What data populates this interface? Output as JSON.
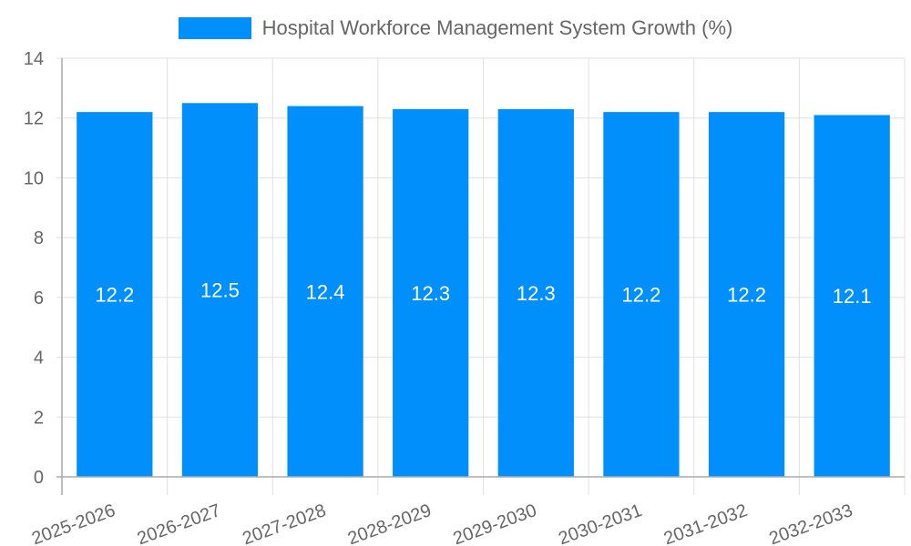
{
  "chart_data": {
    "type": "bar",
    "title": "",
    "legend": [
      "Hospital Workforce Management System Growth (%)"
    ],
    "legend_position": "top",
    "categories": [
      "2025-2026",
      "2026-2027",
      "2027-2028",
      "2028-2029",
      "2029-2030",
      "2030-2031",
      "2031-2032",
      "2032-2033"
    ],
    "series": [
      {
        "name": "Hospital Workforce Management System Growth (%)",
        "values": [
          12.2,
          12.5,
          12.4,
          12.3,
          12.3,
          12.2,
          12.2,
          12.1
        ],
        "color": "#008FFB"
      }
    ],
    "xlabel": "",
    "ylabel": "",
    "ylim": [
      0,
      14
    ],
    "yticks": [
      0,
      2,
      4,
      6,
      8,
      10,
      12,
      14
    ],
    "grid": true,
    "data_labels": true
  },
  "legend": {
    "label": "Hospital Workforce Management System Growth (%)",
    "color": "#008FFB"
  }
}
